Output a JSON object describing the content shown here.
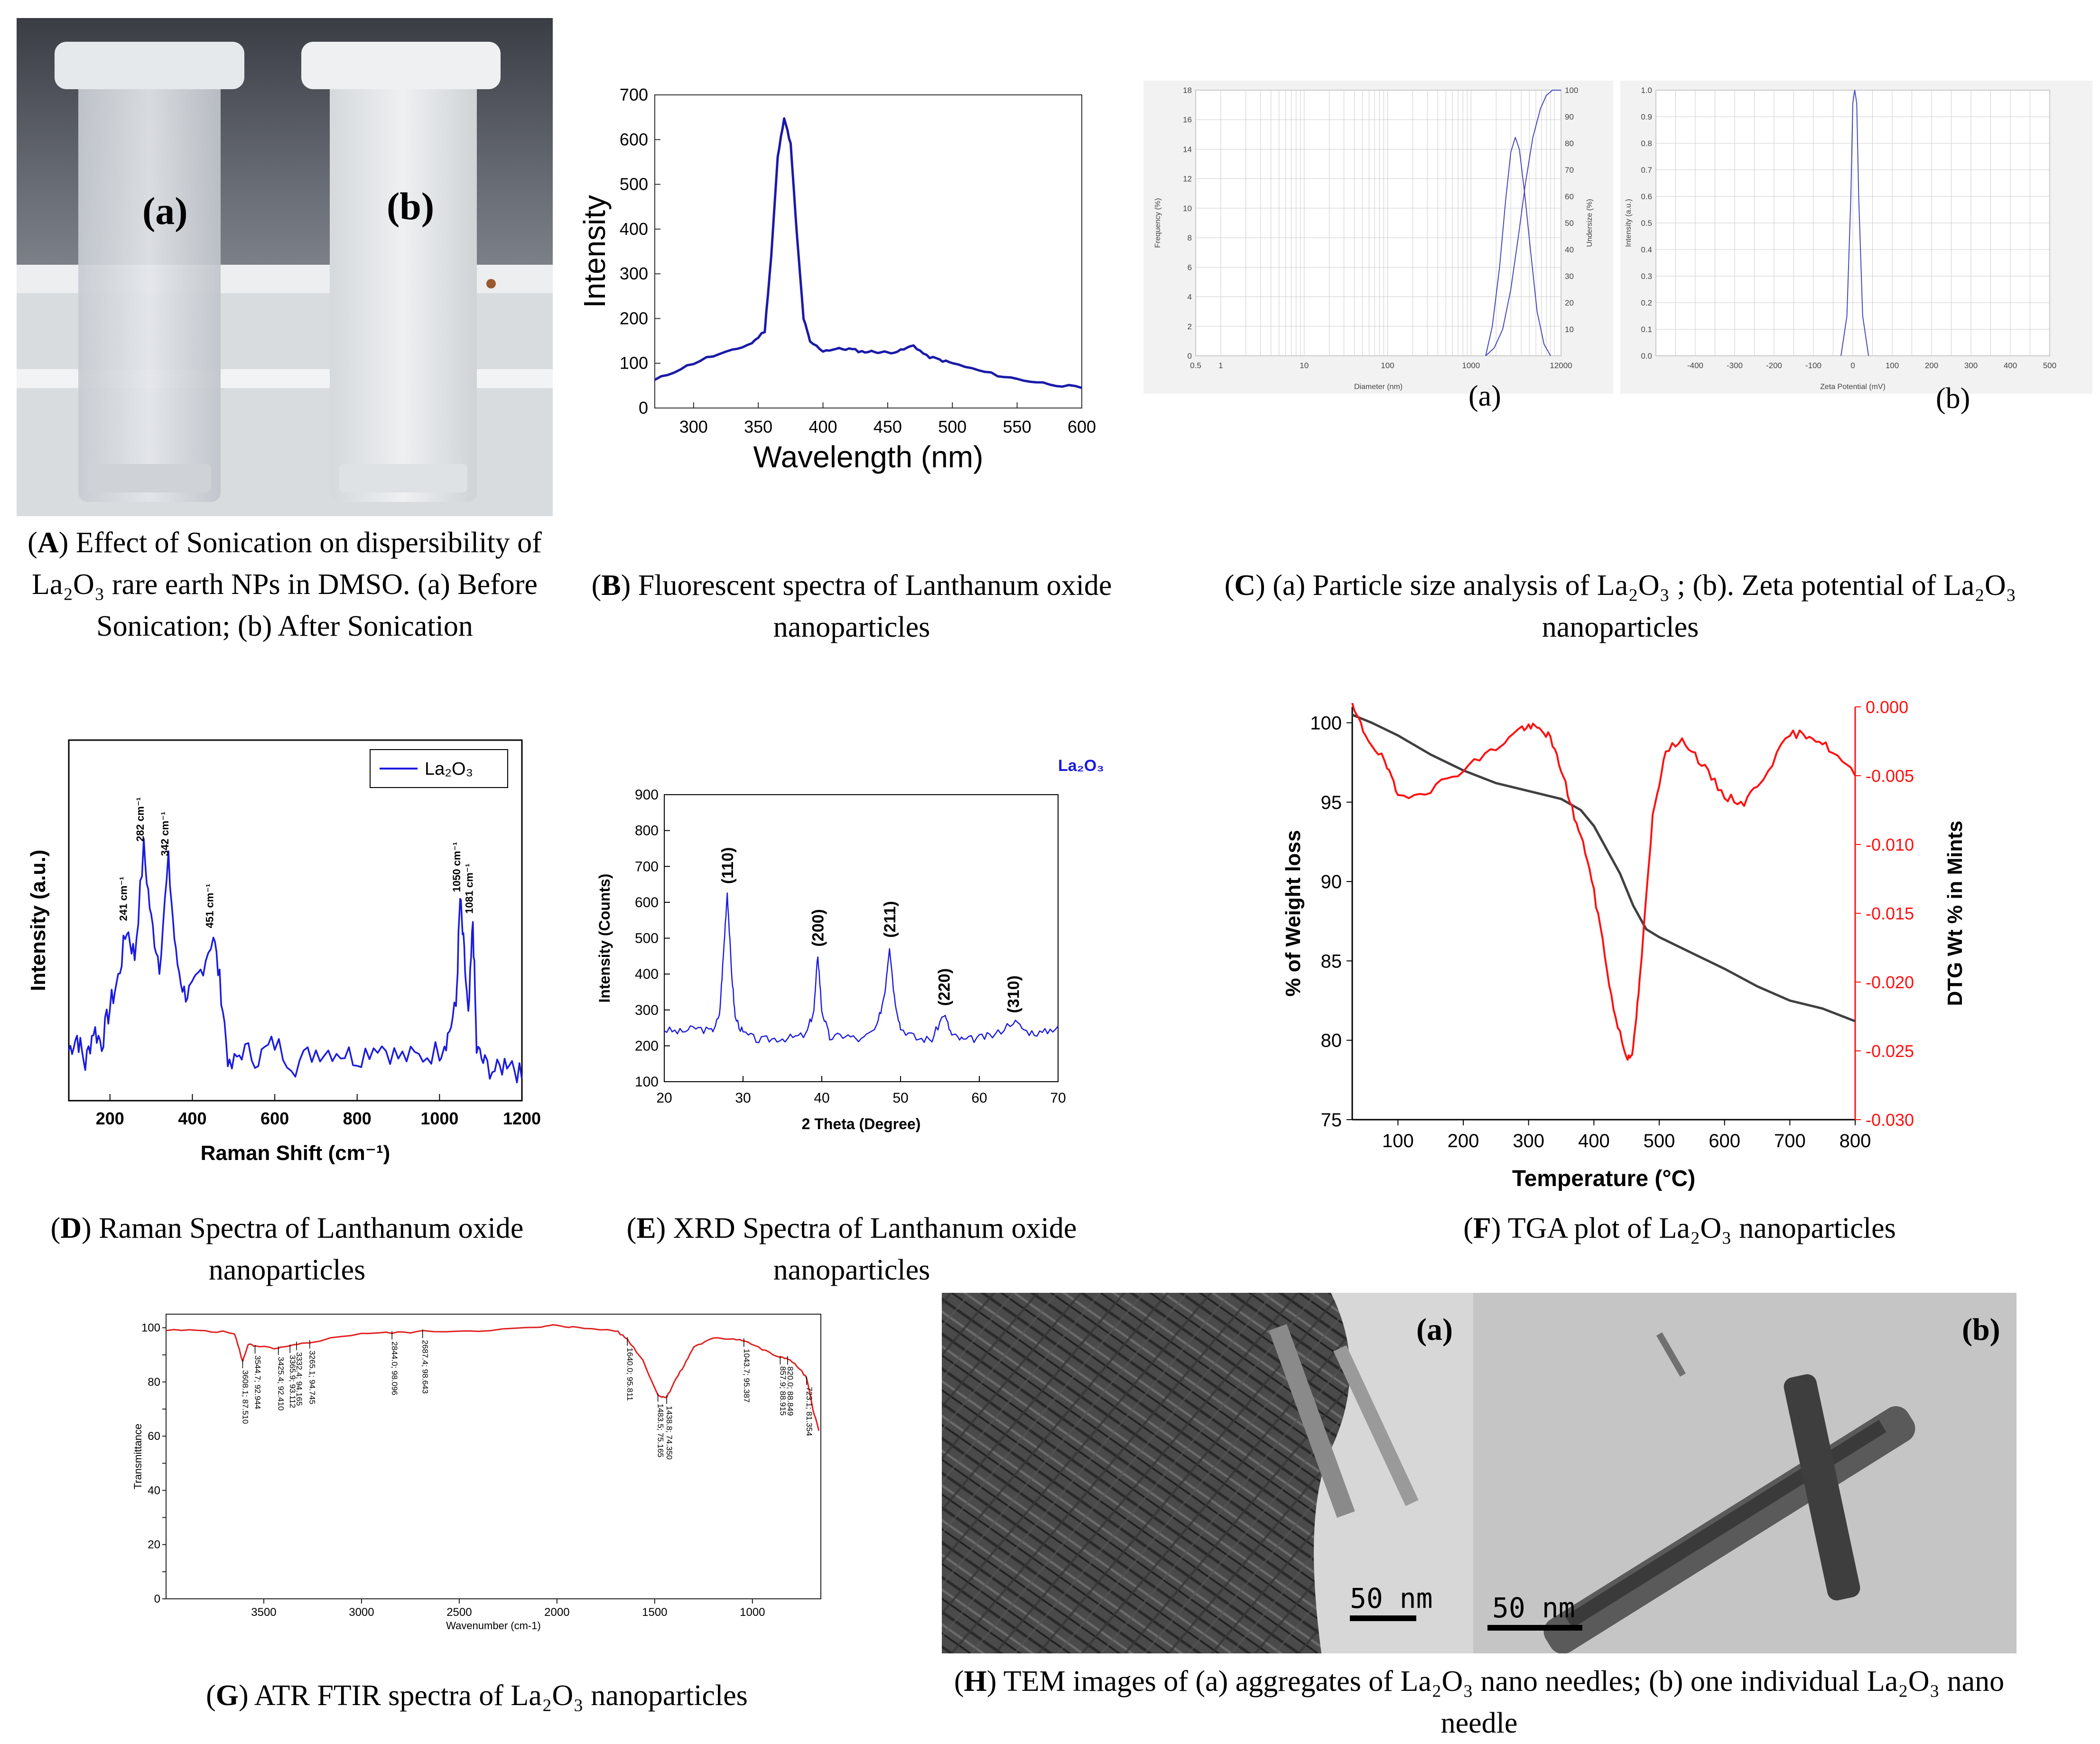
{
  "panelA": {
    "label_a": "(a)",
    "label_b": "(b)",
    "caption_letter": "A",
    "caption": ") Effect of Sonication on dispersibility of La₂O₃ rare earth NPs in DMSO. (a) Before Sonication; (b) After Sonication"
  },
  "panelB": {
    "caption_letter": "B",
    "caption": ") Fluorescent spectra of Lanthanum oxide nanoparticles"
  },
  "panelC": {
    "sub_a": "(a)",
    "sub_b": "(b)",
    "caption_letter": "C",
    "caption": ") (a) Particle size analysis of La₂O₃ ; (b). Zeta potential of La₂O₃ nanoparticles"
  },
  "panelD": {
    "caption_letter": "D",
    "caption": ") Raman Spectra of Lanthanum oxide nanoparticles"
  },
  "panelE": {
    "caption_letter": "E",
    "caption": ") XRD Spectra of Lanthanum oxide nanoparticles"
  },
  "panelF": {
    "caption_letter": "F",
    "caption": ") TGA plot of La₂O₃ nanoparticles"
  },
  "panelG": {
    "caption_letter": "G",
    "caption": ") ATR FTIR spectra of La₂O₃ nanoparticles"
  },
  "panelH": {
    "label_a": "(a)",
    "label_b": "(b)",
    "scale_a": "50 nm",
    "scale_b": "50 nm",
    "caption_letter": "H",
    "caption": ") TEM images of (a) aggregates of La₂O₃ nano needles; (b) one individual La₂O₃ nano needle"
  },
  "chart_data": [
    {
      "id": "B",
      "type": "line",
      "xlabel": "Wavelength (nm)",
      "ylabel": "Intensity",
      "xlim": [
        270,
        600
      ],
      "ylim": [
        0,
        700
      ],
      "xticks": [
        300,
        350,
        400,
        450,
        500,
        550,
        600
      ],
      "yticks": [
        0,
        100,
        200,
        300,
        400,
        500,
        600,
        700
      ],
      "color": "#1a1aa8",
      "series": [
        {
          "x": [
            270,
            290,
            310,
            330,
            345,
            355,
            360,
            365,
            370,
            375,
            380,
            385,
            390,
            400,
            410,
            420,
            430,
            440,
            450,
            460,
            470,
            480,
            490,
            500,
            520,
            540,
            560,
            580,
            600
          ],
          "y": [
            62,
            88,
            112,
            128,
            145,
            172,
            340,
            560,
            650,
            590,
            380,
            200,
            148,
            128,
            132,
            132,
            126,
            126,
            124,
            128,
            140,
            116,
            108,
            100,
            84,
            70,
            60,
            52,
            45
          ]
        }
      ]
    },
    {
      "id": "C-a",
      "type": "line",
      "xlabel": "Diameter (nm)",
      "ylabel": "Frequency (%)",
      "y2label": "Undersize (%)",
      "xscale": "log",
      "xlim": [
        0.5,
        12000
      ],
      "ylim": [
        0,
        18
      ],
      "y2lim": [
        0,
        100
      ],
      "xticks": [
        0.5,
        1,
        10,
        100,
        1000,
        12000
      ],
      "yticks": [
        0,
        2,
        4,
        6,
        8,
        10,
        12,
        14,
        16,
        18
      ],
      "y2ticks": [
        10,
        20,
        30,
        40,
        50,
        60,
        70,
        80,
        90,
        100
      ],
      "color": "#4848b8",
      "series": [
        {
          "x": [
            1500,
            1800,
            2200,
            2600,
            3000,
            3400,
            3800,
            4400,
            5200,
            6200,
            7500,
            9000
          ],
          "y": [
            0,
            2,
            6,
            10.5,
            13.8,
            14.8,
            14.0,
            11,
            7,
            3,
            0.8,
            0
          ]
        },
        {
          "x": [
            1500,
            1900,
            2400,
            3000,
            3700,
            4500,
            5500,
            6800,
            8000,
            9500,
            12000
          ],
          "y": [
            0,
            3,
            10,
            25,
            45,
            65,
            82,
            93,
            98,
            100,
            100
          ],
          "axis": "y2"
        }
      ]
    },
    {
      "id": "C-b",
      "type": "line",
      "xlabel": "Zeta Potential (mV)",
      "ylabel": "Intensity (a.u.)",
      "xlim": [
        -500,
        500
      ],
      "ylim": [
        0,
        1.0
      ],
      "xticks": [
        -400,
        -300,
        -200,
        -100,
        0,
        100,
        200,
        300,
        400,
        500
      ],
      "yticks": [
        0,
        0.1,
        0.2,
        0.3,
        0.4,
        0.5,
        0.6,
        0.7,
        0.8,
        0.9,
        1.0
      ],
      "color": "#4848b8",
      "series": [
        {
          "x": [
            -30,
            -15,
            -5,
            0,
            5,
            10,
            15,
            25,
            40
          ],
          "y": [
            0,
            0.15,
            0.6,
            0.95,
            1.0,
            0.95,
            0.6,
            0.15,
            0
          ]
        }
      ]
    },
    {
      "id": "D",
      "type": "line",
      "xlabel": "Raman Shift (cm⁻¹)",
      "ylabel": "Intensity (a.u.)",
      "xlim": [
        100,
        1200
      ],
      "xticks": [
        200,
        400,
        600,
        800,
        1000,
        1200
      ],
      "ylim": [
        0,
        100
      ],
      "legend": "La₂O₃",
      "color": "#1a1ae0",
      "peaks": [
        {
          "x": 241,
          "y": 48,
          "label": "241 cm⁻¹"
        },
        {
          "x": 282,
          "y": 70,
          "label": "282 cm⁻¹"
        },
        {
          "x": 342,
          "y": 66,
          "label": "342 cm⁻¹"
        },
        {
          "x": 451,
          "y": 46,
          "label": "451 cm⁻¹"
        },
        {
          "x": 1050,
          "y": 56,
          "label": "1050 cm⁻¹"
        },
        {
          "x": 1081,
          "y": 50,
          "label": "1081 cm⁻¹"
        }
      ],
      "series": [
        {
          "x": [
            100,
            120,
            140,
            160,
            180,
            200,
            220,
            241,
            260,
            282,
            300,
            320,
            342,
            360,
            380,
            400,
            420,
            451,
            470,
            490,
            520,
            560,
            600,
            650,
            700,
            750,
            800,
            850,
            900,
            950,
            1000,
            1020,
            1040,
            1050,
            1060,
            1070,
            1081,
            1090,
            1110,
            1140,
            1170,
            1200
          ],
          "y": [
            14,
            18,
            10,
            20,
            16,
            26,
            34,
            48,
            40,
            70,
            50,
            38,
            66,
            40,
            30,
            30,
            36,
            46,
            30,
            8,
            14,
            12,
            16,
            10,
            14,
            14,
            12,
            16,
            12,
            12,
            14,
            18,
            26,
            56,
            40,
            22,
            50,
            14,
            10,
            8,
            12,
            6
          ]
        }
      ]
    },
    {
      "id": "E",
      "type": "line",
      "xlabel": "2 Theta (Degree)",
      "ylabel": "Intensity (Counts)",
      "xlim": [
        20,
        70
      ],
      "ylim": [
        100,
        900
      ],
      "xticks": [
        20,
        30,
        40,
        50,
        60,
        70
      ],
      "yticks": [
        100,
        200,
        300,
        400,
        500,
        600,
        700,
        800,
        900
      ],
      "legend": "La₂O₃",
      "color": "#1a1ae0",
      "peaks": [
        {
          "x": 28.0,
          "y": 630,
          "label": "(110)"
        },
        {
          "x": 39.5,
          "y": 455,
          "label": "(200)"
        },
        {
          "x": 48.6,
          "y": 480,
          "label": "(211)"
        },
        {
          "x": 55.5,
          "y": 290,
          "label": "(220)"
        },
        {
          "x": 64.3,
          "y": 270,
          "label": "(310)"
        }
      ],
      "series": [
        {
          "x": [
            20,
            22,
            24,
            26,
            27,
            27.5,
            28,
            28.5,
            29,
            30,
            32,
            34,
            36,
            38,
            39,
            39.5,
            40,
            41,
            43,
            45,
            47,
            48,
            48.6,
            49.2,
            50,
            52,
            54,
            55.5,
            56.5,
            58,
            60,
            62,
            64.3,
            66,
            68,
            70
          ],
          "y": [
            245,
            238,
            250,
            240,
            280,
            450,
            630,
            420,
            280,
            235,
            215,
            220,
            222,
            230,
            300,
            455,
            300,
            222,
            230,
            215,
            250,
            350,
            480,
            340,
            250,
            220,
            218,
            290,
            230,
            215,
            222,
            230,
            270,
            240,
            235,
            255
          ]
        }
      ]
    },
    {
      "id": "F",
      "type": "line",
      "xlabel": "Temperature (°C)",
      "ylabel": "% of Weight loss",
      "y2label": "DTG Wt % in Mints",
      "xlim": [
        30,
        800
      ],
      "ylim": [
        75,
        101
      ],
      "y2lim": [
        -0.03,
        0.0
      ],
      "xticks": [
        100,
        200,
        300,
        400,
        500,
        600,
        700,
        800
      ],
      "yticks": [
        75,
        80,
        85,
        90,
        95,
        100
      ],
      "y2ticks": [
        "0.000",
        "-0.005",
        "-0.010",
        "-0.015",
        "-0.020",
        "-0.025",
        "-0.030"
      ],
      "series": [
        {
          "name": "TGA",
          "color": "#404040",
          "x": [
            30,
            60,
            100,
            150,
            200,
            250,
            300,
            350,
            380,
            400,
            420,
            440,
            460,
            480,
            500,
            550,
            600,
            650,
            700,
            750,
            800
          ],
          "y": [
            100.5,
            100.0,
            99.2,
            98.0,
            97.0,
            96.2,
            95.7,
            95.2,
            94.5,
            93.5,
            92.0,
            90.5,
            88.5,
            87.0,
            86.5,
            85.5,
            84.5,
            83.4,
            82.5,
            82.0,
            81.2
          ]
        },
        {
          "name": "DTG",
          "color": "#ff1010",
          "axis": "y2",
          "x": [
            30,
            50,
            80,
            100,
            150,
            200,
            250,
            290,
            310,
            330,
            350,
            370,
            390,
            410,
            430,
            450,
            460,
            470,
            490,
            510,
            540,
            570,
            600,
            630,
            660,
            700,
            730,
            760,
            800
          ],
          "y": [
            0.0,
            -0.002,
            -0.004,
            -0.0065,
            -0.006,
            -0.0045,
            -0.003,
            -0.0015,
            -0.0015,
            -0.002,
            -0.0045,
            -0.008,
            -0.011,
            -0.016,
            -0.022,
            -0.0255,
            -0.025,
            -0.02,
            -0.008,
            -0.003,
            -0.0025,
            -0.0045,
            -0.0065,
            -0.007,
            -0.005,
            -0.002,
            -0.002,
            -0.003,
            -0.005
          ]
        }
      ]
    },
    {
      "id": "G",
      "type": "line",
      "xlabel": "Wavenumber (cm-1)",
      "ylabel": "Transmittance",
      "xlim": [
        4000,
        650
      ],
      "ylim": [
        0,
        105
      ],
      "xticks": [
        3500,
        3000,
        2500,
        2000,
        1500,
        1000
      ],
      "yticks": [
        0,
        10,
        20,
        30,
        40,
        50,
        60,
        70,
        80,
        90,
        100
      ],
      "color": "#e02020",
      "annotations": [
        "3608.1; 87.510",
        "3544.7; 92.944",
        "3425.4; 92.410",
        "3365.9; 93.112",
        "3332.4; 94.165",
        "3265.1; 94.745",
        "2844.0; 98.096",
        "2687.4; 98.643",
        "1640.0; 95.811",
        "1483.5; 75.165",
        "1438.8; 74.350",
        "1043.7; 95.387",
        "857.9; 88.915",
        "820.0; 88.849",
        "723.1; 81.354"
      ],
      "series": [
        {
          "x": [
            4000,
            3800,
            3650,
            3608,
            3580,
            3544,
            3425,
            3365,
            3265,
            3000,
            2844,
            2687,
            2400,
            2100,
            2000,
            1900,
            1700,
            1640,
            1560,
            1483,
            1438,
            1400,
            1350,
            1300,
            1200,
            1100,
            1043,
            950,
            857,
            820,
            760,
            723,
            690,
            660
          ],
          "y": [
            99,
            99,
            98,
            87.5,
            94,
            93,
            92.4,
            93.1,
            94.7,
            98,
            98.1,
            98.6,
            99,
            100,
            101,
            100,
            99,
            95.8,
            88,
            75,
            74.4,
            80,
            86,
            93,
            96,
            96,
            95.4,
            92,
            88.9,
            88.8,
            85,
            81.4,
            70,
            62
          ]
        }
      ]
    }
  ]
}
